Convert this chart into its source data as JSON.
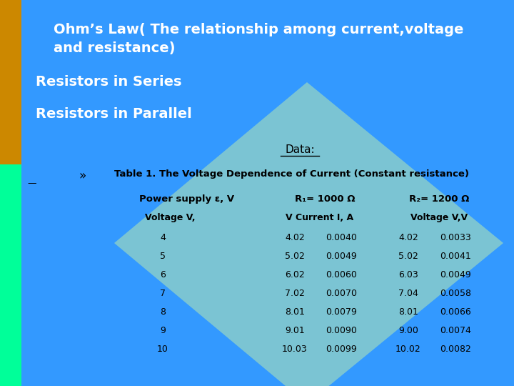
{
  "title_line1": "Ohm’s Law( The relationship among current,voltage",
  "title_line2": "and resistance)",
  "subtitle1": "Resistors in Series",
  "subtitle2": "Resistors in Parallel",
  "section_label": "Data:",
  "bullet": "»",
  "table_title": "Table 1. The Voltage Dependence of Current (Constant resistance)",
  "col_headers": [
    "Power supply ε, V",
    "R₁= 1000 Ω",
    "R₂= 1200 Ω"
  ],
  "sub_headers": [
    "Voltage V,",
    "V Current I, A",
    "Voltage V,V"
  ],
  "data_rows": [
    [
      "4",
      "4.02",
      "0.0040",
      "4.02",
      "0.0033"
    ],
    [
      "5",
      "5.02",
      "0.0049",
      "5.02",
      "0.0041"
    ],
    [
      "6",
      "6.02",
      "0.0060",
      "6.03",
      "0.0049"
    ],
    [
      "7",
      "7.02",
      "0.0070",
      "7.04",
      "0.0058"
    ],
    [
      "8",
      "8.01",
      "0.0079",
      "8.01",
      "0.0066"
    ],
    [
      "9",
      "9.01",
      "0.0090",
      "9.00",
      "0.0074"
    ],
    [
      "10",
      "10.03",
      "0.0099",
      "10.02",
      "0.0082"
    ]
  ],
  "bg_color": "#3399FF",
  "left_stripe_top_color": "#CC8800",
  "left_stripe_bottom_color": "#00FF99",
  "diamond_color": "#88CCCC",
  "title_color": "#FFFFFF",
  "subtitle_color": "#FFFFFF",
  "text_color": "#000000",
  "header_color": "#000000"
}
